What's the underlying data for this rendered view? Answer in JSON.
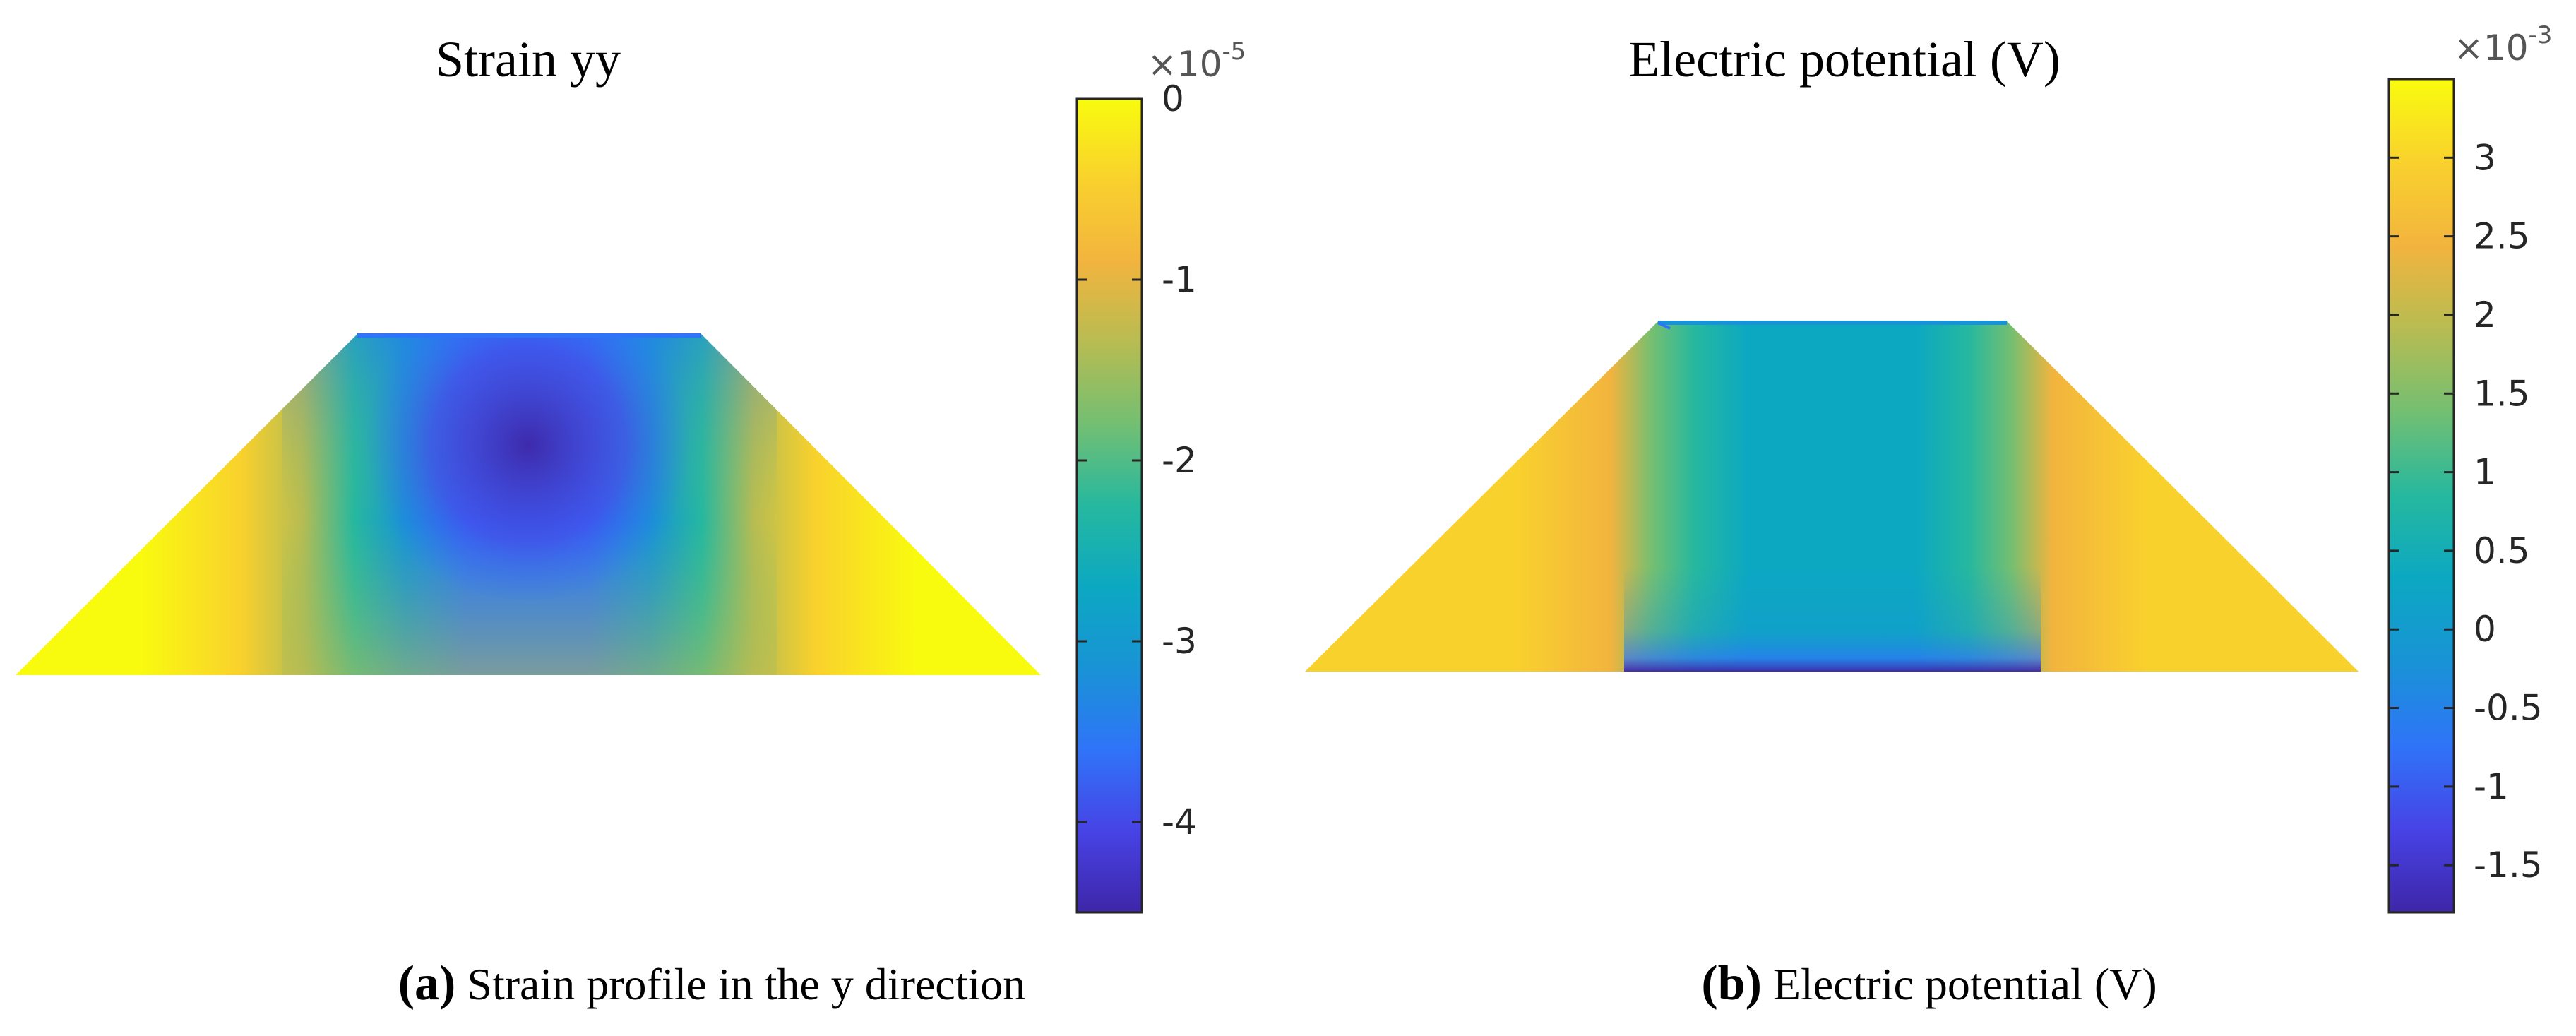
{
  "colormap": [
    "#3e26a8",
    "#4743e6",
    "#2f74f8",
    "#1993d6",
    "#0ca8c2",
    "#26b89f",
    "#73bf72",
    "#b7bc52",
    "#f2b43e",
    "#f9d12d",
    "#f9fb0e"
  ],
  "chart_data": [
    {
      "type": "heatmap",
      "title": "Strain yy",
      "panel_label": "a",
      "caption": "Strain profile in the y direction",
      "colorbar": {
        "exponent_base": "×10",
        "exponent_power": "-5",
        "range": [
          -4.5,
          0.0
        ],
        "ticks": [
          0,
          -1,
          -2,
          -3,
          -4
        ],
        "tick_labels": [
          "0",
          "-1",
          "-2",
          "-3",
          "-4"
        ]
      },
      "field": {
        "shape": "trapezoid",
        "description_values": {
          "top_center_min": -4.5,
          "outer_max": 0.0
        }
      }
    },
    {
      "type": "heatmap",
      "title": "Electric potential (V)",
      "panel_label": "b",
      "caption": "Electric potential (V)",
      "colorbar": {
        "exponent_base": "×10",
        "exponent_power": "-3",
        "range": [
          -1.8,
          3.5
        ],
        "ticks": [
          3,
          2.5,
          2,
          1.5,
          1,
          0.5,
          0,
          -0.5,
          -1,
          -1.5
        ],
        "tick_labels": [
          "3",
          "2.5",
          "2",
          "1.5",
          "1",
          "0.5",
          "0",
          "-0.5",
          "-1",
          "-1.5"
        ]
      },
      "field": {
        "shape": "trapezoid",
        "description_values": {
          "bottom_center_min": -1.8,
          "flank_max": 2.8,
          "center": 0.2
        }
      }
    }
  ]
}
